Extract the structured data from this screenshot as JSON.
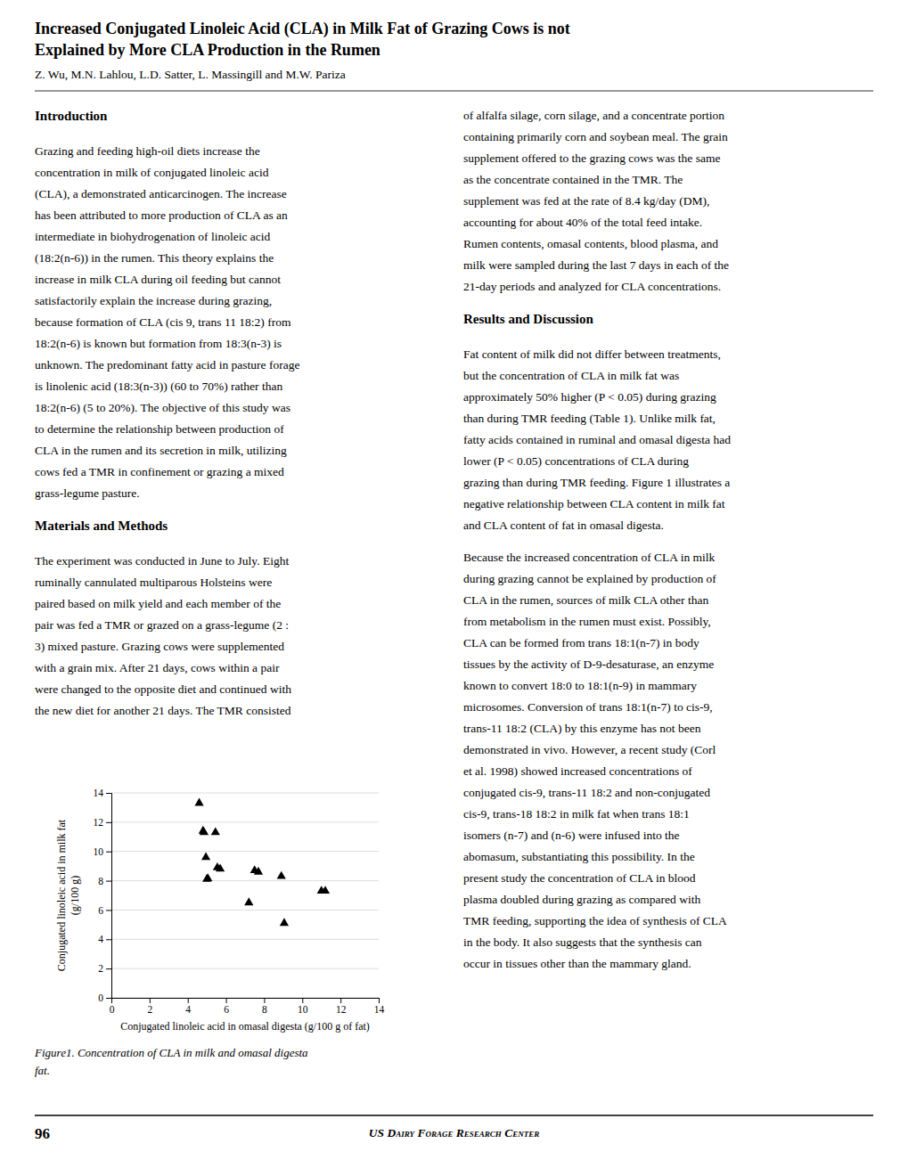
{
  "title": [
    "Increased Conjugated Linoleic Acid (CLA) in Milk Fat of Grazing Cows is not",
    "Explained by More CLA Production in the Rumen"
  ],
  "authors": "Z. Wu, M.N. Lahlou, L.D. Satter, L. Massingill and M.W. Pariza",
  "left_column": [
    {
      "heading": "Introduction"
    },
    {
      "lines": [
        "Grazing and feeding high-oil diets increase the",
        "concentration in milk of conjugated linoleic acid",
        "(CLA), a demonstrated anticarcinogen. The increase",
        "has been attributed to more production of CLA as an",
        "intermediate in biohydrogenation of linoleic acid",
        "(18:2(n-6)) in the rumen. This theory explains the",
        "increase in milk CLA during oil feeding but cannot",
        "satisfactorily explain the increase during grazing,",
        "because formation of CLA (cis 9, trans 11 18:2) from",
        "18:2(n-6) is known but formation from 18:3(n-3) is",
        "unknown. The predominant fatty acid in pasture forage",
        "is linolenic acid (18:3(n-3)) (60 to 70%) rather than",
        "18:2(n-6) (5 to 20%). The objective of this study was",
        "to determine the relationship between production of",
        "CLA in the rumen and its secretion in milk, utilizing",
        "cows fed a TMR in confinement or grazing a mixed",
        "grass-legume pasture."
      ]
    },
    {
      "heading": "Materials and Methods"
    },
    {
      "lines": [
        "The experiment was conducted in June to July. Eight",
        "ruminally cannulated multiparous Holsteins were",
        "paired based on milk yield and each member of the",
        "pair was fed a TMR or grazed on a grass-legume (2 :",
        "3) mixed pasture. Grazing cows were supplemented",
        "with a grain mix. After 21 days, cows within a pair",
        "were changed to the opposite diet and continued with",
        "the new diet for another 21 days. The TMR consisted"
      ]
    }
  ],
  "right_column": [
    {
      "lines": [
        "of alfalfa silage, corn silage, and a concentrate portion",
        "containing primarily corn and soybean meal. The grain",
        "supplement offered to the grazing cows was the same",
        "as the concentrate contained in the TMR. The",
        "supplement was fed at the rate of 8.4 kg/day (DM),",
        "accounting for about 40% of the total feed intake.",
        "Rumen contents, omasal contents, blood plasma, and",
        "milk were sampled during the last 7 days in each of the",
        "21-day periods and analyzed for CLA concentrations."
      ]
    },
    {
      "heading": "Results and Discussion"
    },
    {
      "lines": [
        "Fat content of milk did not differ between treatments,",
        "but the concentration of CLA in milk fat was",
        "approximately 50% higher (P < 0.05) during grazing",
        "than during TMR feeding (Table 1). Unlike milk fat,",
        "fatty acids contained in ruminal and omasal digesta had",
        "lower (P < 0.05) concentrations of CLA during",
        "grazing than during TMR feeding. Figure 1 illustrates a",
        "negative relationship between CLA content in milk fat",
        "and CLA content of fat in omasal digesta."
      ]
    },
    {
      "lines": [
        "Because the increased concentration of CLA in milk",
        "during grazing cannot be explained by production of",
        "CLA in the rumen, sources of milk CLA other than",
        "from metabolism in the rumen must exist. Possibly,",
        "CLA can be formed from trans 18:1(n-7) in body",
        "tissues by the activity of D-9-desaturase, an enzyme",
        "known to convert 18:0 to 18:1(n-9) in mammary",
        "microsomes. Conversion of trans 18:1(n-7) to cis-9,",
        "trans-11 18:2 (CLA) by this enzyme has not been",
        "demonstrated in vivo. However, a recent study (Corl",
        "et al. 1998) showed increased concentrations of",
        "conjugated cis-9, trans-11 18:2 and non-conjugated",
        "cis-9, trans-18 18:2 in milk fat when trans 18:1",
        "isomers (n-7) and (n-6) were infused into the",
        "abomasum, substantiating this possibility. In the",
        "present study the concentration of CLA in blood",
        "plasma doubled during grazing as compared with",
        "TMR feeding, supporting the idea of synthesis of CLA",
        "in the body. It also suggests that the synthesis can",
        "occur in tissues other than the mammary gland."
      ]
    }
  ],
  "chart_data": {
    "type": "scatter",
    "x": [
      4.6,
      4.8,
      4.85,
      4.95,
      5.0,
      5.05,
      5.45,
      5.55,
      5.7,
      7.2,
      7.5,
      7.7,
      8.9,
      9.05,
      11.0,
      11.2
    ],
    "y": [
      13.3,
      11.4,
      11.3,
      9.6,
      8.1,
      8.15,
      11.3,
      8.9,
      8.8,
      6.5,
      8.7,
      8.6,
      8.3,
      5.1,
      7.3,
      7.3
    ],
    "xlabel": "Conjugated linoleic acid in omasal digesta (g/100 g of fat)",
    "ylabel": [
      "Conjugated linoleic acid in milk fat",
      "(g/100 g)"
    ],
    "xlim": [
      0,
      14
    ],
    "ylim": [
      0,
      14
    ],
    "xticks": [
      0,
      2,
      4,
      6,
      8,
      10,
      12,
      14
    ],
    "yticks": [
      0,
      2,
      4,
      6,
      8,
      10,
      12,
      14
    ],
    "grid": "y",
    "color": "#000000",
    "marker": "triangle"
  },
  "caption": [
    "Figure1.   Concentration of CLA in milk and omasal digesta",
    "fat."
  ],
  "page_number": "96",
  "footer": "US Dairy Forage Research Center"
}
